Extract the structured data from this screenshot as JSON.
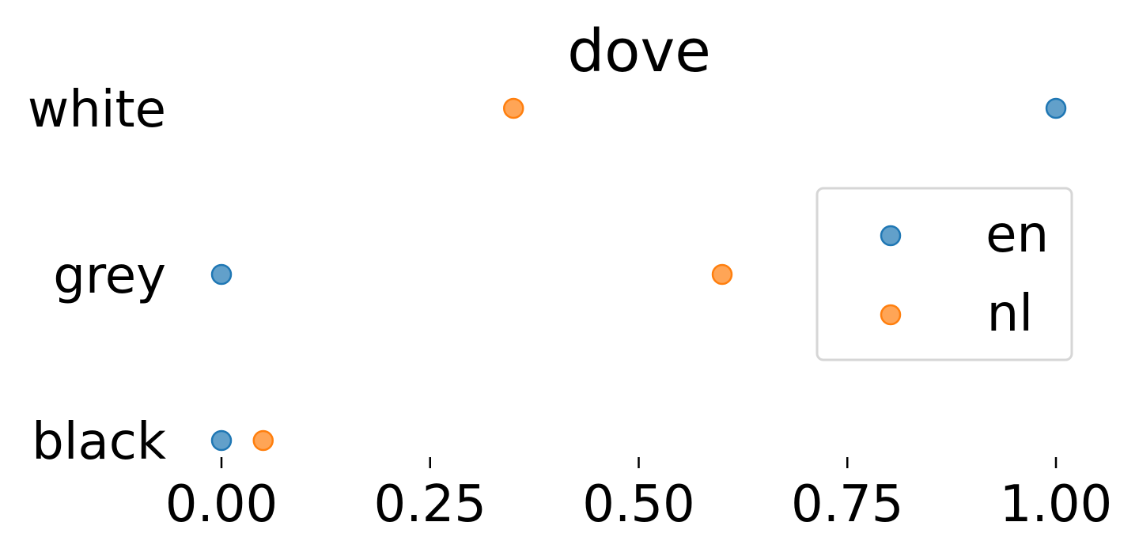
{
  "chart_data": {
    "type": "scatter",
    "title": "dove",
    "xlabel": "",
    "ylabel": "",
    "categories": [
      "black",
      "grey",
      "white"
    ],
    "xlim": [
      0,
      1
    ],
    "xticks": [
      "0.00",
      "0.25",
      "0.50",
      "0.75",
      "1.00"
    ],
    "grid": false,
    "legend_position": "center-right",
    "series": [
      {
        "name": "en",
        "color": "#1f77b4",
        "values": [
          0.0,
          0.0,
          1.0
        ]
      },
      {
        "name": "nl",
        "color": "#ff7f0e",
        "values": [
          0.05,
          0.6,
          0.35
        ]
      }
    ]
  }
}
